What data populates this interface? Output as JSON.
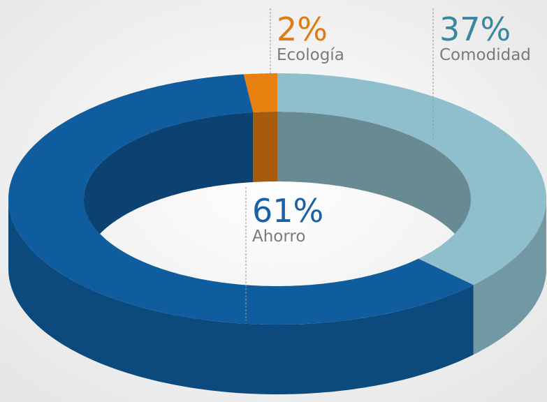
{
  "chart_data": {
    "type": "donut3d",
    "categories": [
      "Ecología",
      "Comodidad",
      "Ahorro"
    ],
    "values": [
      2,
      37,
      61
    ],
    "value_labels": [
      "2%",
      "37%",
      "61%"
    ],
    "colors": [
      "#e8800f",
      "#8fbfcc",
      "#0f5c9e"
    ],
    "label_colors": [
      "#e07a12",
      "#3a87a0",
      "#1a60a6"
    ]
  }
}
